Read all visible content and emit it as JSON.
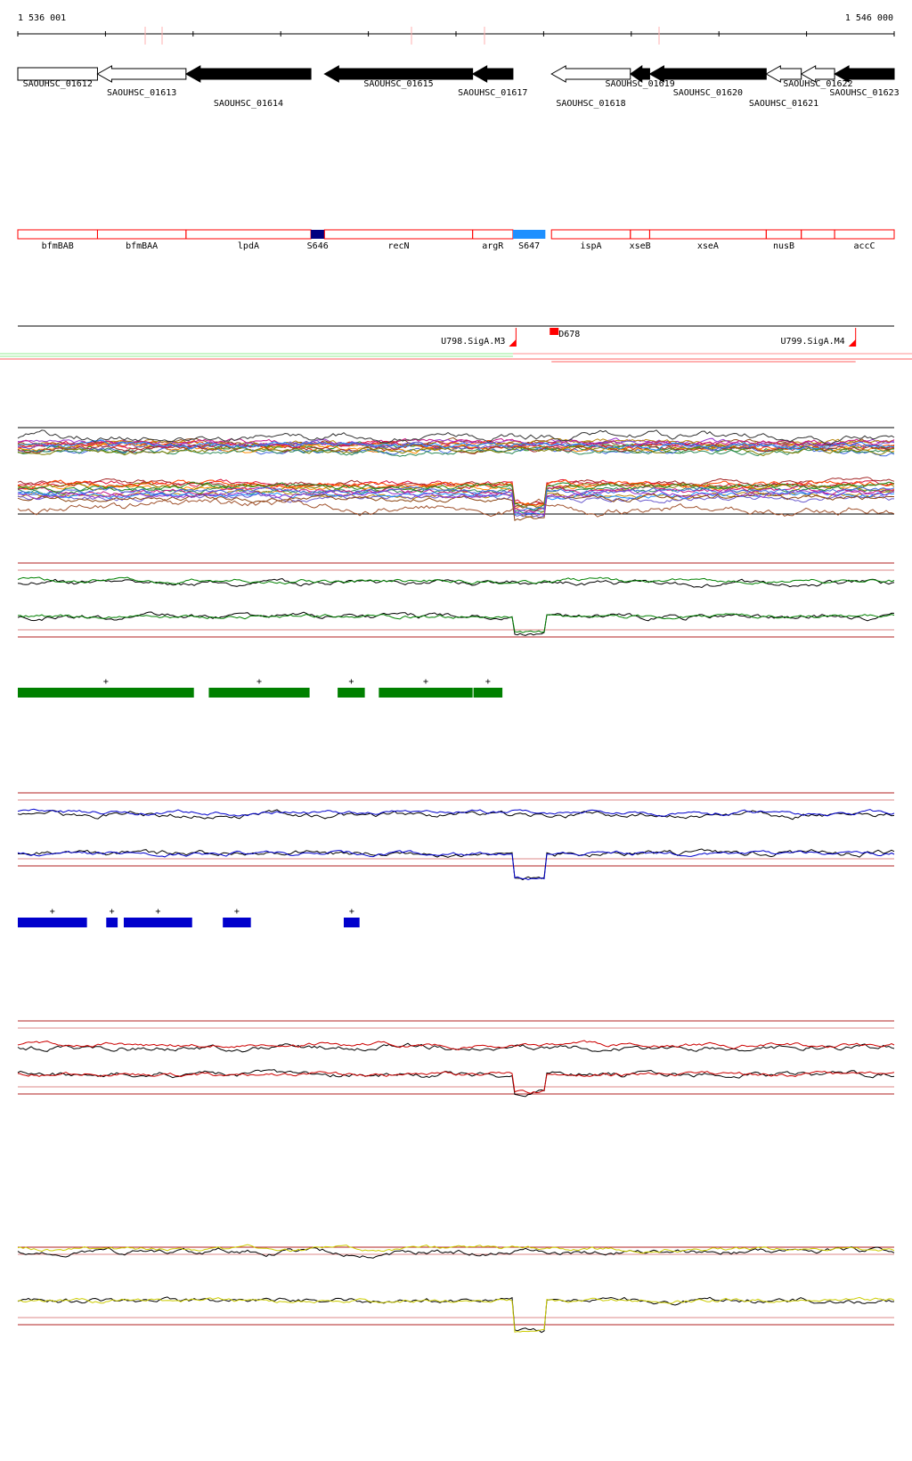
{
  "coordinates": {
    "start_label": "1 536 001",
    "end_label": "1 546 000",
    "start_bp": 1536001,
    "end_bp": 1546000
  },
  "genes": [
    {
      "id": "SAOUHSC_01612",
      "start": 1536001,
      "end": 1536910,
      "strand": "+",
      "filled": false,
      "label_row": 0
    },
    {
      "id": "SAOUHSC_01613",
      "start": 1536910,
      "end": 1537920,
      "strand": "-",
      "filled": false,
      "label_row": 1
    },
    {
      "id": "SAOUHSC_01614",
      "start": 1537920,
      "end": 1539345,
      "strand": "-",
      "filled": true,
      "label_row": 2
    },
    {
      "id": "SAOUHSC_01615",
      "start": 1539500,
      "end": 1541190,
      "strand": "-",
      "filled": true,
      "label_row": 0
    },
    {
      "id": "SAOUHSC_01617",
      "start": 1541190,
      "end": 1541650,
      "strand": "-",
      "filled": true,
      "label_row": 1
    },
    {
      "id": "SAOUHSC_01618",
      "start": 1542090,
      "end": 1542990,
      "strand": "-",
      "filled": false,
      "label_row": 2
    },
    {
      "id": "SAOUHSC_01619",
      "start": 1542990,
      "end": 1543210,
      "strand": "-",
      "filled": true,
      "label_row": 0
    },
    {
      "id": "SAOUHSC_01620",
      "start": 1543210,
      "end": 1544540,
      "strand": "-",
      "filled": true,
      "label_row": 1
    },
    {
      "id": "SAOUHSC_01621",
      "start": 1544540,
      "end": 1544940,
      "strand": "-",
      "filled": false,
      "label_row": 2
    },
    {
      "id": "SAOUHSC_01622",
      "start": 1544940,
      "end": 1545320,
      "strand": "-",
      "filled": false,
      "label_row": 0
    },
    {
      "id": "SAOUHSC_01623",
      "start": 1545320,
      "end": 1546000,
      "strand": "-",
      "filled": true,
      "label_row": 1
    }
  ],
  "features": [
    {
      "name": "bfmBAB",
      "start": 1536001,
      "end": 1536910,
      "kind": "outline"
    },
    {
      "name": "bfmBAA",
      "start": 1536910,
      "end": 1537920,
      "kind": "outline"
    },
    {
      "name": "lpdA",
      "start": 1537920,
      "end": 1539345,
      "kind": "outline"
    },
    {
      "name": "S646",
      "start": 1539345,
      "end": 1539500,
      "kind": "block",
      "color": "#000080"
    },
    {
      "name": "recN",
      "start": 1539500,
      "end": 1541190,
      "kind": "outline"
    },
    {
      "name": "argR",
      "start": 1541190,
      "end": 1541650,
      "kind": "outline"
    },
    {
      "name": "S647",
      "start": 1541650,
      "end": 1542020,
      "kind": "block",
      "color": "#1e90ff"
    },
    {
      "name": "ispA",
      "start": 1542090,
      "end": 1542990,
      "kind": "outline"
    },
    {
      "name": "xseB",
      "start": 1542990,
      "end": 1543210,
      "kind": "outline"
    },
    {
      "name": "xseA",
      "start": 1543210,
      "end": 1544540,
      "kind": "outline"
    },
    {
      "name": "nusB",
      "start": 1544540,
      "end": 1544940,
      "kind": "outline"
    },
    {
      "name": "",
      "start": 1544940,
      "end": 1545320,
      "kind": "outline"
    },
    {
      "name": "accC",
      "start": 1545320,
      "end": 1546000,
      "kind": "outline"
    }
  ],
  "transcripts": [
    {
      "name": "U798.SigA.M3",
      "pos": 1541685
    },
    {
      "name": "D678",
      "pos": 1542090
    },
    {
      "name": "U799.SigA.M4",
      "pos": 1545560
    }
  ],
  "segments_green": [
    {
      "start": 1536001,
      "end": 1538010,
      "sign": "+"
    },
    {
      "start": 1538180,
      "end": 1539330,
      "sign": "+"
    },
    {
      "start": 1539650,
      "end": 1539960,
      "sign": "+"
    },
    {
      "start": 1540120,
      "end": 1541190,
      "sign": "+"
    },
    {
      "start": 1541200,
      "end": 1541530,
      "sign": "+"
    }
  ],
  "segments_blue": [
    {
      "start": 1536001,
      "end": 1536790,
      "sign": "+"
    },
    {
      "start": 1537010,
      "end": 1537140,
      "sign": "+"
    },
    {
      "start": 1537210,
      "end": 1537990,
      "sign": "+"
    },
    {
      "start": 1538340,
      "end": 1538660,
      "sign": "+"
    },
    {
      "start": 1539720,
      "end": 1539900,
      "sign": "+"
    }
  ],
  "colors": {
    "outline_red": "#ff0000",
    "threshold": "#b22222",
    "green_track": "#008000",
    "blue_track": "#0000cc",
    "red_track": "#cc0000",
    "yellow_track": "#cccc00",
    "dip_start": 1541650,
    "dip_end": 1542020
  }
}
